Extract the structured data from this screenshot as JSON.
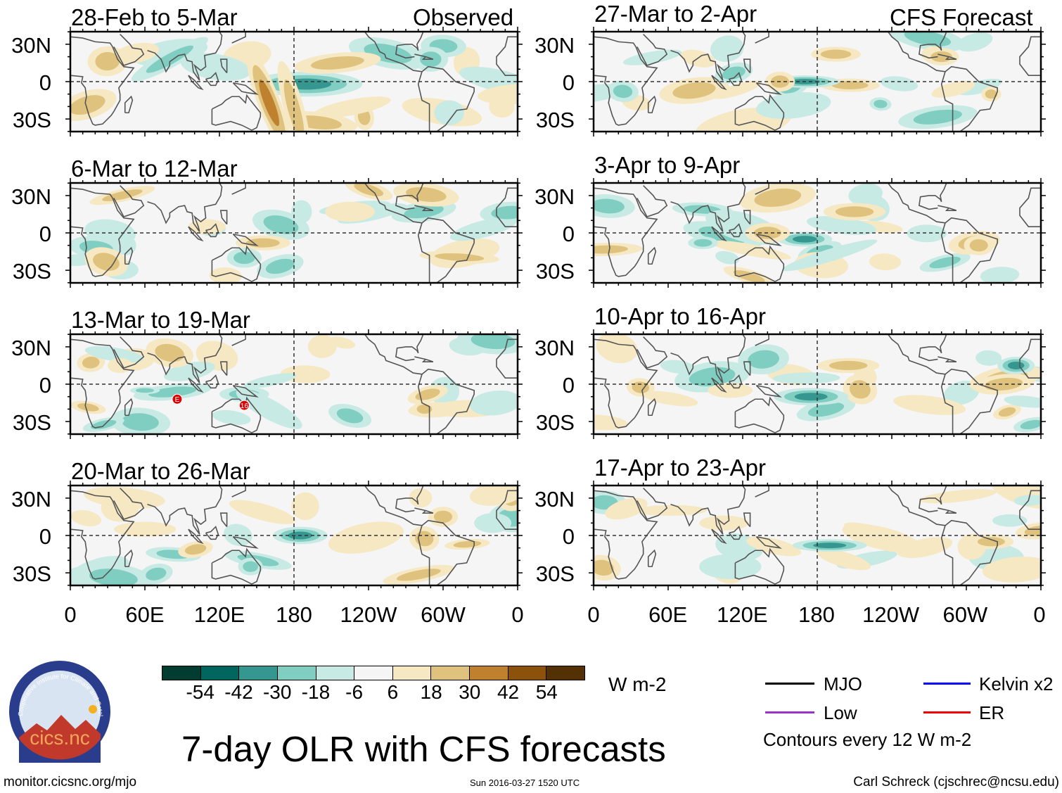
{
  "left_column": {
    "label": "Observed",
    "panels": [
      {
        "title": "28-Feb to 5-Mar"
      },
      {
        "title": "6-Mar to 12-Mar"
      },
      {
        "title": "13-Mar to 19-Mar",
        "markers": [
          {
            "text": "E",
            "lon": 86,
            "lat": -12
          },
          {
            "text": "16",
            "lon": 140,
            "lat": -17
          }
        ]
      },
      {
        "title": "20-Mar to 26-Mar"
      }
    ]
  },
  "right_column": {
    "label": "CFS Forecast",
    "panels": [
      {
        "title": "27-Mar to 2-Apr"
      },
      {
        "title": "3-Apr to 9-Apr"
      },
      {
        "title": "10-Apr to 16-Apr"
      },
      {
        "title": "17-Apr to 23-Apr"
      }
    ]
  },
  "y_axis_labels": [
    "30N",
    "0",
    "30S"
  ],
  "x_axis_labels": [
    "0",
    "60E",
    "120E",
    "180",
    "120W",
    "60W",
    "0"
  ],
  "colorbar": {
    "levels": [
      "-54",
      "-42",
      "-30",
      "-18",
      "-6",
      "6",
      "18",
      "30",
      "42",
      "54"
    ],
    "colors": [
      "#003c30",
      "#01665e",
      "#35978f",
      "#80cdc1",
      "#c7eae5",
      "#f5f5f5",
      "#f6e8c3",
      "#dfc27d",
      "#bf812d",
      "#8c510a",
      "#543005"
    ],
    "units": "W m-2"
  },
  "legend": {
    "items": [
      {
        "label": "MJO",
        "color": "#000000"
      },
      {
        "label": "Kelvin x2",
        "color": "#0000ff"
      },
      {
        "label": "Low",
        "color": "#9933cc"
      },
      {
        "label": "ER",
        "color": "#ee0000"
      }
    ],
    "contour_note": "Contours every 12 W m-2"
  },
  "main_title": "7-day OLR with CFS forecasts",
  "footer": {
    "url": "monitor.cicsnc.org/mjo",
    "timestamp": "Sun 2016-03-27 1520 UTC",
    "author": "Carl Schreck (cjschrec@ncsu.edu)"
  },
  "logo": {
    "name": "cics.nc",
    "ring_text": "Cooperative Institute for Climate and Satellites"
  }
}
